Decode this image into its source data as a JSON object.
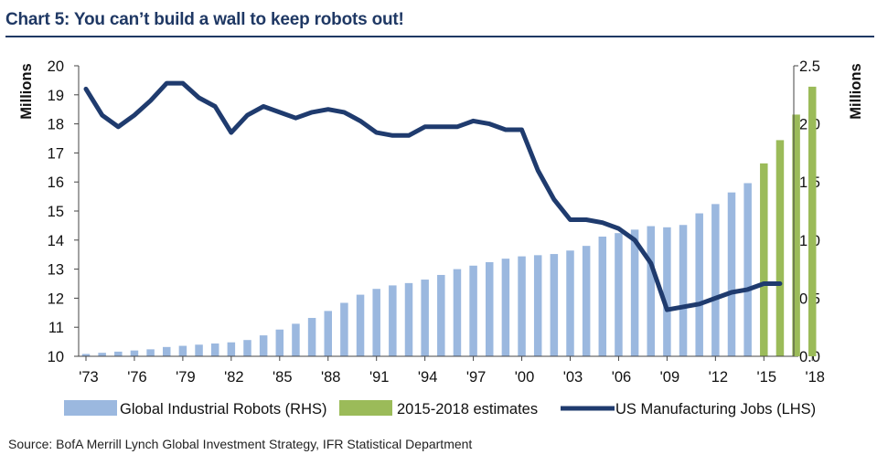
{
  "title": "Chart 5: You can’t build a wall to keep robots out!",
  "source": "Source: BofA Merrill Lynch Global Investment Strategy, IFR Statistical Department",
  "colors": {
    "robots": "#9bb8df",
    "estimates": "#9bbb59",
    "jobs": "#1f3b6e",
    "title": "#1f3864"
  },
  "chart_data": {
    "type": "bar+line",
    "left_axis": {
      "label": "Millions",
      "min": 10,
      "max": 20,
      "ticks": [
        "10",
        "11",
        "12",
        "13",
        "14",
        "15",
        "16",
        "17",
        "18",
        "19",
        "20"
      ]
    },
    "right_axis": {
      "label": "Millions",
      "min": 0,
      "max": 2.5,
      "ticks": [
        "0.0",
        "0.5",
        "1.0",
        "1.5",
        "2.0",
        "2.5"
      ]
    },
    "x_tick_labels": [
      "'73",
      "'76",
      "'79",
      "'82",
      "'85",
      "'88",
      "'91",
      "'94",
      "'97",
      "'00",
      "'03",
      "'06",
      "'09",
      "'12",
      "'15",
      "'18"
    ],
    "x_tick_years": [
      1973,
      1976,
      1979,
      1982,
      1985,
      1988,
      1991,
      1994,
      1997,
      2000,
      2003,
      2006,
      2009,
      2012,
      2015,
      2018
    ],
    "legend": [
      "Global Industrial Robots (RHS)",
      "2015-2018 estimates",
      "US Manufacturing Jobs (LHS)"
    ],
    "series": [
      {
        "name": "Global Industrial Robots (RHS)",
        "axis": "right",
        "kind": "bar",
        "x": [
          1973,
          1974,
          1975,
          1976,
          1977,
          1978,
          1979,
          1980,
          1981,
          1982,
          1983,
          1984,
          1985,
          1986,
          1987,
          1988,
          1989,
          1990,
          1991,
          1992,
          1993,
          1994,
          1995,
          1996,
          1997,
          1998,
          1999,
          2000,
          2001,
          2002,
          2003,
          2004,
          2005,
          2006,
          2007,
          2008,
          2009,
          2010,
          2011,
          2012,
          2013,
          2014
        ],
        "values": [
          0.02,
          0.03,
          0.04,
          0.05,
          0.06,
          0.08,
          0.09,
          0.1,
          0.11,
          0.12,
          0.14,
          0.18,
          0.23,
          0.28,
          0.33,
          0.39,
          0.46,
          0.53,
          0.58,
          0.61,
          0.63,
          0.66,
          0.7,
          0.75,
          0.78,
          0.81,
          0.84,
          0.86,
          0.87,
          0.88,
          0.91,
          0.95,
          1.03,
          1.06,
          1.09,
          1.12,
          1.11,
          1.13,
          1.23,
          1.31,
          1.41,
          1.49
        ]
      },
      {
        "name": "2015-2018 estimates",
        "axis": "right",
        "kind": "bar",
        "x": [
          2015,
          2016,
          2017,
          2018
        ],
        "values": [
          1.66,
          1.86,
          2.08,
          2.32
        ]
      },
      {
        "name": "US Manufacturing Jobs (LHS)",
        "axis": "left",
        "kind": "line",
        "x": [
          1973,
          1974,
          1975,
          1976,
          1977,
          1978,
          1979,
          1980,
          1981,
          1982,
          1983,
          1984,
          1985,
          1986,
          1987,
          1988,
          1989,
          1990,
          1991,
          1992,
          1993,
          1994,
          1995,
          1996,
          1997,
          1998,
          1999,
          2000,
          2001,
          2002,
          2003,
          2004,
          2005,
          2006,
          2007,
          2008,
          2009,
          2010,
          2011,
          2012,
          2013,
          2014,
          2015,
          2016
        ],
        "values": [
          19.2,
          18.3,
          17.9,
          18.3,
          18.8,
          19.4,
          19.4,
          18.9,
          18.6,
          17.7,
          18.3,
          18.6,
          18.4,
          18.2,
          18.4,
          18.5,
          18.4,
          18.1,
          17.7,
          17.6,
          17.6,
          17.9,
          17.9,
          17.9,
          18.1,
          18.0,
          17.8,
          17.8,
          16.4,
          15.4,
          14.7,
          14.7,
          14.6,
          14.4,
          14.0,
          13.2,
          11.6,
          11.7,
          11.8,
          12.0,
          12.2,
          12.3,
          12.5,
          12.5
        ]
      }
    ]
  }
}
